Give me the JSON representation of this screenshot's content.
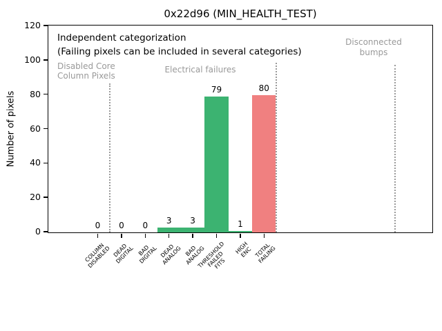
{
  "chart_data": {
    "type": "bar",
    "title": "0x22d96 (MIN_HEALTH_TEST)",
    "ylabel": "Number of pixels",
    "xlabel": "",
    "ylim": [
      0,
      120
    ],
    "yticks": [
      0,
      20,
      40,
      60,
      80,
      100,
      120
    ],
    "grid": false,
    "categories": [
      [
        "COLUMN",
        "DISABLED"
      ],
      [
        "DEAD",
        "DIGITAL"
      ],
      [
        "BAD",
        "DIGITAL"
      ],
      [
        "DEAD",
        "ANALOG"
      ],
      [
        "BAD",
        "ANALOG"
      ],
      [
        "THRESHOLD",
        "FAILED",
        "FITS"
      ],
      [
        "HIGH",
        "ENC"
      ],
      [
        "TOTAL",
        "FAILING"
      ]
    ],
    "values": [
      0,
      0,
      0,
      3,
      3,
      79,
      1,
      80
    ],
    "value_labels": [
      "0",
      "0",
      "0",
      "3",
      "3",
      "79",
      "1",
      "80"
    ],
    "bar_colors": [
      "#3cb371",
      "#3cb371",
      "#3cb371",
      "#3cb371",
      "#3cb371",
      "#3cb371",
      "#3cb371",
      "#f08080"
    ],
    "annotations": {
      "note_line1": "Independent categorization",
      "note_line2": "(Failing pixels can be included in several categories)",
      "sections": [
        {
          "label": [
            "Disabled Core",
            "Column Pixels"
          ]
        },
        {
          "label": [
            "Electrical failures"
          ]
        },
        {
          "label": [
            "Disconnected",
            "bumps"
          ]
        }
      ]
    },
    "separator_positions_category_units": [
      0.5,
      7.5,
      12.5
    ],
    "colors": {
      "bar_green": "#3cb371",
      "bar_total_red": "#f08080",
      "section_text_gray": "#999999",
      "separator_gray": "#999999",
      "axis_black": "#000000"
    }
  }
}
